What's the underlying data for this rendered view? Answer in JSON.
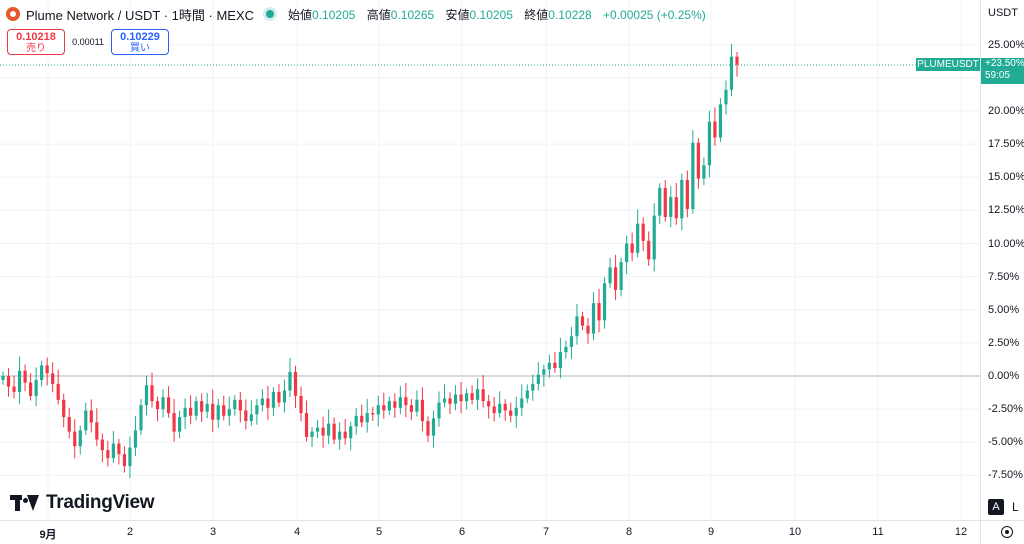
{
  "symbol": {
    "title": "Plume Network / USDT · 1時間 · MEXC",
    "o_label": "始値",
    "o": "0.10205",
    "h_label": "高値",
    "h": "0.10265",
    "l_label": "安値",
    "l": "0.10205",
    "c_label": "終値",
    "c": "0.10228",
    "change": "+0.00025 (+0.25%)"
  },
  "trade": {
    "sell_price": "0.10218",
    "sell_label": "売り",
    "spread": "0.00011",
    "buy_price": "0.10229",
    "buy_label": "買い"
  },
  "scale": {
    "currency": "USDT",
    "a_button": "A",
    "l_button": "L"
  },
  "badge": {
    "symbol": "PLUMEUSDT",
    "pct": "+23.50%",
    "countdown": "59:05"
  },
  "branding": {
    "name": "TradingView"
  },
  "colors": {
    "up": "#22ab94",
    "down": "#f23645",
    "grid": "#f0f3fa"
  },
  "icons": {
    "settings": "gear-icon",
    "symbol_logo": "plume-logo"
  },
  "chart_data": {
    "type": "candlestick",
    "y_unit": "%",
    "y_ticks": [
      "25.00%",
      "22.50%",
      "20.00%",
      "17.50%",
      "15.00%",
      "12.50%",
      "10.00%",
      "7.50%",
      "5.00%",
      "2.50%",
      "0.00%",
      "-2.50%",
      "-5.00%",
      "-7.50%"
    ],
    "y_values": [
      25,
      22.5,
      20,
      17.5,
      15,
      12.5,
      10,
      7.5,
      5,
      2.5,
      0,
      -2.5,
      -5,
      -7.5
    ],
    "x_ticks": [
      "9月",
      "2",
      "3",
      "4",
      "5",
      "6",
      "7",
      "8",
      "9",
      "10",
      "11",
      "12"
    ],
    "last_value": 23.5,
    "closes": [
      0,
      -0.8,
      -1.2,
      0.4,
      -0.5,
      -1.5,
      -0.3,
      0.8,
      0.2,
      -0.6,
      -1.8,
      -3.1,
      -4.2,
      -5.3,
      -4.1,
      -2.6,
      -3.5,
      -4.8,
      -5.6,
      -6.2,
      -5.1,
      -5.9,
      -6.8,
      -5.4,
      -4.1,
      -2.2,
      -0.7,
      -1.9,
      -2.5,
      -1.6,
      -2.8,
      -4.2,
      -3.1,
      -2.4,
      -3.0,
      -1.9,
      -2.7,
      -2.1,
      -3.3,
      -2.2,
      -3.0,
      -2.5,
      -1.8,
      -2.6,
      -3.4,
      -2.9,
      -2.2,
      -1.7,
      -2.4,
      -1.2,
      -2.0,
      -1.1,
      0.3,
      -1.5,
      -2.8,
      -4.6,
      -4.2,
      -3.9,
      -4.5,
      -3.6,
      -4.8,
      -4.2,
      -4.7,
      -3.8,
      -3.0,
      -3.5,
      -2.8,
      -2.9,
      -2.2,
      -2.6,
      -1.9,
      -2.4,
      -1.6,
      -2.2,
      -2.7,
      -1.8,
      -3.4,
      -4.5,
      -3.2,
      -2.0,
      -1.7,
      -2.1,
      -1.4,
      -1.9,
      -1.3,
      -1.8,
      -1.0,
      -1.9,
      -2.3,
      -2.8,
      -2.1,
      -2.6,
      -3.0,
      -2.4,
      -1.7,
      -1.1,
      -0.6,
      0.1,
      0.5,
      1.0,
      0.6,
      1.8,
      2.2,
      3.0,
      4.5,
      3.8,
      3.2,
      5.5,
      4.2,
      7.0,
      8.2,
      6.5,
      8.6,
      10.0,
      9.3,
      11.5,
      10.2,
      8.8,
      12.1,
      14.2,
      12.0,
      13.5,
      11.9,
      14.8,
      12.6,
      17.6,
      14.9,
      15.9,
      19.2,
      18.0,
      20.5,
      21.6,
      24.1,
      23.5
    ]
  }
}
